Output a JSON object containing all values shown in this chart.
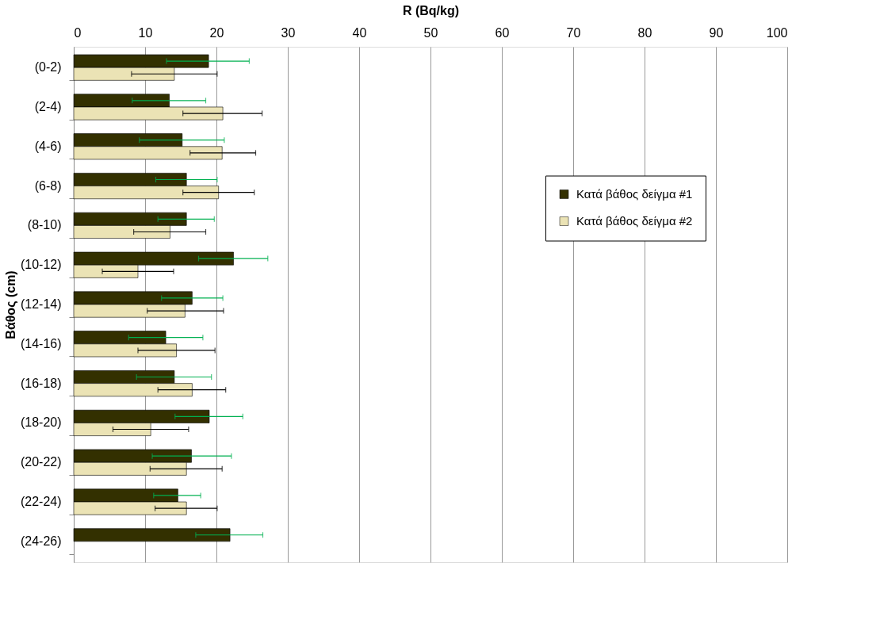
{
  "chart_data": {
    "type": "bar",
    "orientation": "horizontal",
    "xlabel": "R (Bq/kg)",
    "ylabel": "Βάθος (cm)",
    "categories": [
      "(0-2)",
      "(2-4)",
      "(4-6)",
      "(6-8)",
      "(8-10)",
      "(10-12)",
      "(12-14)",
      "(14-16)",
      "(16-18)",
      "(18-20)",
      "(20-22)",
      "(22-24)",
      "(24-26)"
    ],
    "series": [
      {
        "name": "Κατά βάθος δείγμα #1",
        "color": "#333000",
        "values": [
          18.9,
          13.4,
          15.2,
          15.8,
          15.8,
          22.4,
          16.6,
          12.9,
          14.1,
          19.0,
          16.5,
          14.6,
          21.9
        ],
        "errors": [
          [
            13.0,
            24.6
          ],
          [
            8.2,
            18.5
          ],
          [
            9.2,
            21.1
          ],
          [
            11.5,
            20.1
          ],
          [
            11.8,
            19.7
          ],
          [
            17.5,
            27.2
          ],
          [
            12.3,
            20.9
          ],
          [
            7.7,
            18.1
          ],
          [
            8.8,
            19.3
          ],
          [
            14.2,
            23.7
          ],
          [
            11.0,
            22.1
          ],
          [
            11.2,
            17.8
          ],
          [
            17.1,
            26.5
          ]
        ]
      },
      {
        "name": "Κατά βάθος δείγμα #2",
        "color": "#ebe3b5",
        "values": [
          14.1,
          20.9,
          20.8,
          20.3,
          13.5,
          9.0,
          15.6,
          14.4,
          16.6,
          10.8,
          15.8,
          15.8,
          null
        ],
        "errors": [
          [
            8.1,
            20.1
          ],
          [
            15.3,
            26.4
          ],
          [
            16.3,
            25.5
          ],
          [
            15.3,
            25.3
          ],
          [
            8.4,
            18.5
          ],
          [
            4.0,
            14.0
          ],
          [
            10.3,
            21.0
          ],
          [
            9.0,
            19.8
          ],
          [
            11.8,
            21.3
          ],
          [
            5.5,
            16.1
          ],
          [
            10.7,
            20.8
          ],
          [
            11.4,
            20.1
          ],
          null
        ]
      }
    ],
    "xlim": [
      0,
      100
    ],
    "xticks": [
      0,
      10,
      20,
      30,
      40,
      50,
      60,
      70,
      80,
      90,
      100
    ],
    "grid": "x",
    "legend": "right"
  }
}
